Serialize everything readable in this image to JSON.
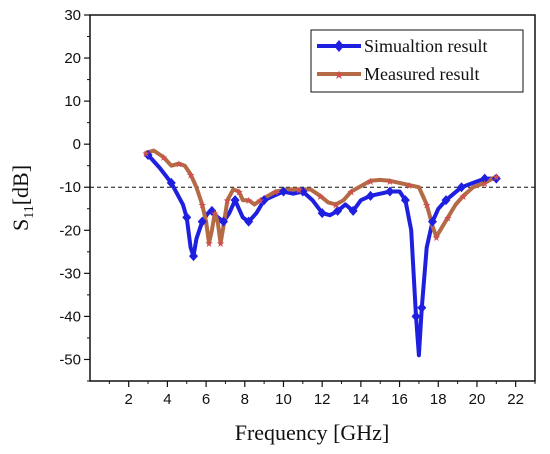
{
  "chart_data": {
    "type": "line",
    "xlabel": "Frequency [GHz]",
    "ylabel_main": "S",
    "ylabel_sub": "11",
    "ylabel_unit": "[dB]",
    "xlim": [
      0,
      23
    ],
    "ylim": [
      -55,
      30
    ],
    "xticks": [
      2,
      4,
      6,
      8,
      10,
      12,
      14,
      16,
      18,
      20,
      22
    ],
    "yticks": [
      -50,
      -40,
      -30,
      -20,
      -10,
      0,
      10,
      20,
      30
    ],
    "reference_line": -10,
    "grid": false,
    "legend_position": "top-right",
    "series": [
      {
        "name": "Simualtion result",
        "color": "#1f1fe0",
        "marker": "diamond",
        "points": [
          [
            3.0,
            -2.5
          ],
          [
            3.6,
            -5.5
          ],
          [
            4.2,
            -9
          ],
          [
            4.8,
            -14
          ],
          [
            5.0,
            -17
          ],
          [
            5.2,
            -24
          ],
          [
            5.35,
            -26
          ],
          [
            5.5,
            -22
          ],
          [
            5.8,
            -18
          ],
          [
            6.1,
            -16
          ],
          [
            6.3,
            -15.5
          ],
          [
            6.6,
            -17
          ],
          [
            6.9,
            -18
          ],
          [
            7.2,
            -16
          ],
          [
            7.5,
            -13
          ],
          [
            7.9,
            -17
          ],
          [
            8.2,
            -18
          ],
          [
            8.6,
            -16
          ],
          [
            9.0,
            -13
          ],
          [
            9.5,
            -12
          ],
          [
            10.0,
            -11
          ],
          [
            10.5,
            -11.5
          ],
          [
            11.0,
            -11
          ],
          [
            11.5,
            -13
          ],
          [
            12.0,
            -16
          ],
          [
            12.4,
            -16.5
          ],
          [
            12.8,
            -15.5
          ],
          [
            13.2,
            -14
          ],
          [
            13.6,
            -15.5
          ],
          [
            14.0,
            -13
          ],
          [
            14.5,
            -12
          ],
          [
            15.0,
            -11.5
          ],
          [
            15.5,
            -11
          ],
          [
            16.0,
            -11
          ],
          [
            16.3,
            -13
          ],
          [
            16.6,
            -20
          ],
          [
            16.85,
            -40
          ],
          [
            17.0,
            -49
          ],
          [
            17.15,
            -38
          ],
          [
            17.4,
            -24
          ],
          [
            17.7,
            -18
          ],
          [
            18.0,
            -15
          ],
          [
            18.4,
            -13
          ],
          [
            18.8,
            -11.5
          ],
          [
            19.2,
            -10
          ],
          [
            19.8,
            -9
          ],
          [
            20.4,
            -8
          ],
          [
            21.0,
            -8
          ]
        ]
      },
      {
        "name": "Measured  result",
        "color": "#b46a44",
        "marker": "star",
        "points": [
          [
            2.9,
            -2
          ],
          [
            3.3,
            -1.5
          ],
          [
            3.8,
            -3
          ],
          [
            4.2,
            -5
          ],
          [
            4.6,
            -4.5
          ],
          [
            4.9,
            -5
          ],
          [
            5.2,
            -7
          ],
          [
            5.5,
            -10
          ],
          [
            5.8,
            -14
          ],
          [
            6.0,
            -18
          ],
          [
            6.15,
            -23
          ],
          [
            6.3,
            -20
          ],
          [
            6.45,
            -16
          ],
          [
            6.6,
            -18
          ],
          [
            6.75,
            -23
          ],
          [
            6.9,
            -19
          ],
          [
            7.1,
            -13
          ],
          [
            7.4,
            -10.5
          ],
          [
            7.7,
            -11
          ],
          [
            7.9,
            -13
          ],
          [
            8.2,
            -13
          ],
          [
            8.5,
            -14
          ],
          [
            8.8,
            -13
          ],
          [
            9.2,
            -12
          ],
          [
            9.6,
            -11
          ],
          [
            10.2,
            -10.5
          ],
          [
            10.8,
            -10.5
          ],
          [
            11.4,
            -10.5
          ],
          [
            11.9,
            -12
          ],
          [
            12.3,
            -13.5
          ],
          [
            12.7,
            -14
          ],
          [
            13.1,
            -13
          ],
          [
            13.5,
            -11
          ],
          [
            13.9,
            -10
          ],
          [
            14.5,
            -8.5
          ],
          [
            15.0,
            -8.3
          ],
          [
            15.5,
            -8.5
          ],
          [
            16.0,
            -9
          ],
          [
            16.5,
            -9.5
          ],
          [
            17.0,
            -10
          ],
          [
            17.4,
            -14
          ],
          [
            17.7,
            -19
          ],
          [
            17.9,
            -21.5
          ],
          [
            18.1,
            -20
          ],
          [
            18.5,
            -17
          ],
          [
            18.9,
            -14
          ],
          [
            19.3,
            -12
          ],
          [
            19.8,
            -10
          ],
          [
            20.4,
            -9
          ],
          [
            21.0,
            -7.5
          ]
        ]
      }
    ]
  }
}
